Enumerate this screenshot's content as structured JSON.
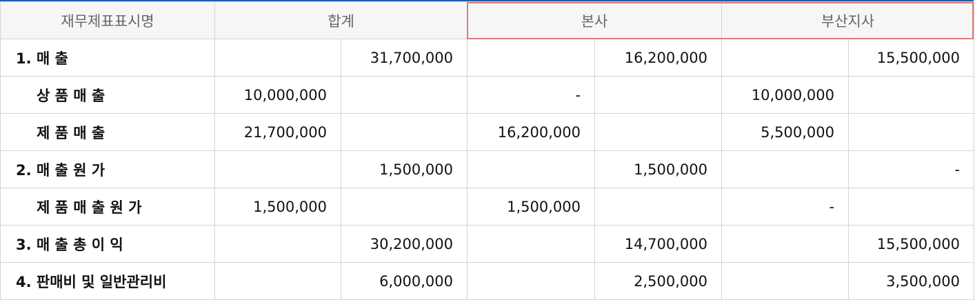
{
  "header": {
    "col_name": "재무제표표시명",
    "col_total": "합계",
    "col_hq": "본사",
    "col_busan": "부산지사"
  },
  "colors": {
    "top_border": "#1e5fa8",
    "highlight_border": "#d97a82",
    "header_bg": "#f6f6f6"
  },
  "rows": [
    {
      "label": "1. 매 출",
      "sub": false,
      "values": [
        "",
        "31,700,000",
        "",
        "16,200,000",
        "",
        "15,500,000"
      ]
    },
    {
      "label": "상 품 매 출",
      "sub": true,
      "values": [
        "10,000,000",
        "",
        "-",
        "",
        "10,000,000",
        ""
      ]
    },
    {
      "label": "제 품 매 출",
      "sub": true,
      "values": [
        "21,700,000",
        "",
        "16,200,000",
        "",
        "5,500,000",
        ""
      ]
    },
    {
      "label": "2. 매 출 원 가",
      "sub": false,
      "values": [
        "",
        "1,500,000",
        "",
        "1,500,000",
        "",
        "-"
      ]
    },
    {
      "label": "제 품 매 출 원 가",
      "sub": true,
      "values": [
        "1,500,000",
        "",
        "1,500,000",
        "",
        "-",
        ""
      ]
    },
    {
      "label": "3. 매 출 총 이 익",
      "sub": false,
      "values": [
        "",
        "30,200,000",
        "",
        "14,700,000",
        "",
        "15,500,000"
      ]
    },
    {
      "label": "4. 판매비 및 일반관리비",
      "sub": false,
      "values": [
        "",
        "6,000,000",
        "",
        "2,500,000",
        "",
        "3,500,000"
      ]
    }
  ]
}
